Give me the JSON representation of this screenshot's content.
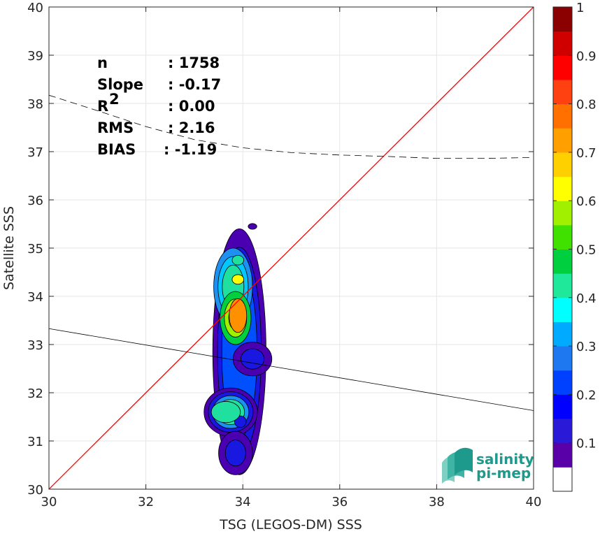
{
  "chart_data": {
    "type": "heatmap",
    "xlabel": "TSG (LEGOS-DM) SSS",
    "ylabel": "Satellite SSS",
    "xlim": [
      30,
      40
    ],
    "ylim": [
      30,
      40
    ],
    "x_ticks": [
      "30",
      "32",
      "34",
      "36",
      "38",
      "40"
    ],
    "y_ticks": [
      "30",
      "31",
      "32",
      "33",
      "34",
      "35",
      "36",
      "37",
      "38",
      "39",
      "40"
    ],
    "grid": true,
    "stats": [
      {
        "label": "n",
        "value": ": 1758"
      },
      {
        "label": "Slope",
        "value": ": -0.17"
      },
      {
        "label": "R",
        "sup": "2",
        "value": ": 0.00"
      },
      {
        "label": "RMS",
        "value": ": 2.16"
      },
      {
        "label": "BIAS",
        "value": ": -1.19"
      }
    ],
    "identity_line": {
      "from": [
        30,
        30
      ],
      "to": [
        40,
        40
      ],
      "color": "#ff0000"
    },
    "fit_line": {
      "slope": -0.17,
      "intercept": 38.43,
      "color": "#000000"
    },
    "dashed_curve": [
      [
        30,
        38.17
      ],
      [
        31,
        37.85
      ],
      [
        32,
        37.52
      ],
      [
        33,
        37.25
      ],
      [
        34,
        37.08
      ],
      [
        35,
        36.98
      ],
      [
        36,
        36.93
      ],
      [
        37,
        36.9
      ],
      [
        38,
        36.86
      ],
      [
        39,
        36.86
      ],
      [
        40,
        36.88
      ]
    ],
    "density_blobs": [
      {
        "cx": 33.93,
        "cy": 32.85,
        "rx": 0.55,
        "ry": 2.55
      },
      {
        "cx": 33.75,
        "cy": 31.6,
        "rx": 0.55,
        "ry": 0.5
      },
      {
        "cx": 33.85,
        "cy": 30.75,
        "rx": 0.35,
        "ry": 0.45
      },
      {
        "cx": 34.2,
        "cy": 32.7,
        "rx": 0.4,
        "ry": 0.35
      },
      {
        "cx": 34.2,
        "cy": 35.45,
        "rx": 0.09,
        "ry": 0.06
      },
      {
        "cx": 33.95,
        "cy": 31.4,
        "rx": 0.12,
        "ry": 0.12
      },
      {
        "cx": 33.8,
        "cy": 34.2,
        "rx": 0.4,
        "ry": 0.8
      },
      {
        "cx": 33.85,
        "cy": 33.55,
        "rx": 0.32,
        "ry": 0.55
      },
      {
        "cx": 33.9,
        "cy": 33.6,
        "rx": 0.18,
        "ry": 0.35
      },
      {
        "cx": 33.65,
        "cy": 31.6,
        "rx": 0.3,
        "ry": 0.22
      },
      {
        "cx": 33.9,
        "cy": 34.35,
        "rx": 0.12,
        "ry": 0.1
      },
      {
        "cx": 33.9,
        "cy": 34.75,
        "rx": 0.12,
        "ry": 0.1
      }
    ],
    "colorbar": {
      "ticks": [
        "0.1",
        "0.2",
        "0.3",
        "0.4",
        "0.5",
        "0.6",
        "0.7",
        "0.8",
        "0.9",
        "1"
      ],
      "colors": [
        "#ffffff",
        "#5a00a8",
        "#2a1ad8",
        "#0000ff",
        "#0040ff",
        "#1e78f0",
        "#00aaff",
        "#00ffff",
        "#20e89a",
        "#00d040",
        "#40e000",
        "#a0f000",
        "#ffff00",
        "#ffd000",
        "#ffa000",
        "#ff7000",
        "#ff4010",
        "#ff0000",
        "#d00000",
        "#8b0000"
      ]
    }
  },
  "logo": {
    "line1": "salinity",
    "line2": "pi-mep"
  }
}
